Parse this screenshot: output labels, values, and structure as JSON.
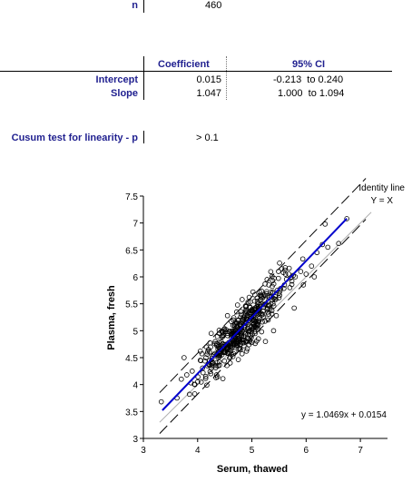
{
  "summary": {
    "n_label": "n",
    "n_value": "460"
  },
  "regression_table": {
    "col_coefficient": "Coefficient",
    "col_ci": "95% CI",
    "rows": [
      {
        "label": "Intercept",
        "coef": "0.015",
        "ci": "-0.213  to 0.240"
      },
      {
        "label": "Slope",
        "coef": "1.047",
        "ci": "1.000  to 1.094"
      }
    ]
  },
  "cusum": {
    "label": "Cusum test for linearity - p",
    "value": "> 0.1"
  },
  "colors": {
    "label_blue": "#1f1f8f",
    "fit_line": "#0000cc",
    "identity_line": "#aaaaaa",
    "points": "#000000"
  },
  "chart_data": {
    "type": "scatter",
    "xlabel": "Serum, thawed",
    "ylabel": "Plasma, fresh",
    "xlim": [
      3,
      7.5
    ],
    "ylim": [
      3,
      7.5
    ],
    "xticks": [
      "3",
      "4",
      "5",
      "6",
      "7"
    ],
    "yticks": [
      "3",
      "3.5",
      "4",
      "4.5",
      "5",
      "5.5",
      "6",
      "6.5",
      "7",
      "7.5"
    ],
    "identity_label_line1": "Identity line",
    "identity_label_line2": "Y = X",
    "equation": "y = 1.0469x + 0.0154",
    "fit": {
      "slope": 1.0469,
      "intercept": 0.0154,
      "x_range": [
        3.35,
        6.75
      ]
    },
    "identity": {
      "x_range": [
        3.3,
        7.2
      ]
    },
    "prediction_band": {
      "offset": 0.38,
      "x_range": [
        3.3,
        7.1
      ]
    },
    "n_points": 460,
    "points_x": [
      3.33,
      3.62,
      3.7,
      3.8,
      3.9,
      3.95,
      4.0,
      4.05,
      4.1,
      4.18,
      4.2,
      4.25,
      4.3,
      4.35,
      4.4,
      4.45,
      4.5,
      4.55,
      4.6,
      4.65,
      4.7,
      4.75,
      4.8,
      4.85,
      4.9,
      4.95,
      5.0,
      5.05,
      5.1,
      5.15,
      5.2,
      5.25,
      5.3,
      5.35,
      5.4,
      5.5,
      5.6,
      5.7,
      5.8,
      5.9,
      6.0,
      6.1,
      6.2,
      6.3,
      6.4,
      6.6,
      6.75,
      3.75,
      3.85,
      4.05,
      4.15,
      4.4,
      4.6,
      4.72,
      4.9,
      5.02,
      5.12,
      5.28,
      5.45,
      5.62,
      5.78,
      5.95,
      6.15,
      6.35,
      4.35,
      4.55,
      4.8,
      5.0,
      5.25,
      4.25,
      4.65,
      4.95,
      5.15,
      5.4,
      4.48,
      4.78,
      5.08,
      5.32,
      4.62,
      4.88,
      5.18,
      4.42,
      4.7,
      5.05,
      5.55
    ],
    "points_y": [
      3.68,
      3.75,
      4.1,
      4.18,
      4.25,
      4.0,
      4.05,
      4.45,
      4.22,
      4.35,
      4.65,
      4.3,
      4.55,
      4.75,
      4.42,
      4.88,
      4.6,
      4.95,
      4.72,
      5.1,
      4.85,
      5.2,
      5.05,
      4.9,
      5.35,
      5.0,
      5.25,
      5.55,
      5.1,
      5.45,
      5.3,
      5.65,
      5.2,
      5.5,
      5.6,
      5.7,
      5.85,
      5.8,
      6.0,
      6.1,
      6.05,
      6.2,
      6.45,
      6.6,
      6.55,
      6.62,
      7.08,
      4.5,
      3.82,
      4.62,
      4.15,
      4.95,
      4.4,
      5.35,
      4.62,
      5.72,
      4.85,
      5.95,
      5.28,
      6.05,
      5.42,
      5.85,
      6.0,
      6.98,
      4.18,
      5.28,
      4.95,
      4.78,
      4.8,
      4.95,
      4.52,
      5.62,
      5.48,
      5.0,
      4.7,
      5.1,
      5.32,
      5.62,
      4.88,
      5.45,
      4.98,
      4.58,
      5.0,
      4.98,
      6.15
    ]
  }
}
